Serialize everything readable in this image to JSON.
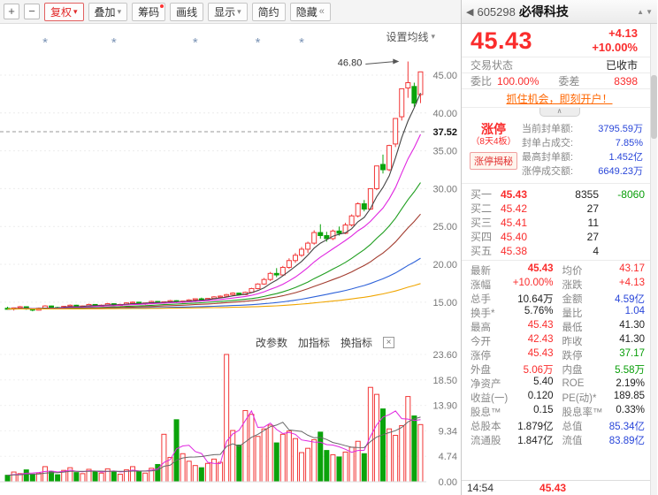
{
  "colors": {
    "red": "#fa2c2c",
    "green": "#089e08",
    "blue": "#2946d9",
    "orange_link": "#ff6600"
  },
  "icons": {
    "caret": "▾",
    "back": "◀",
    "hide_chevrons": "«",
    "close": "×",
    "collapse": "∧",
    "prev": "▲",
    "next": "▼"
  },
  "toolbar": {
    "zoom_in": "+",
    "zoom_out": "−",
    "buttons": [
      {
        "label": "复权",
        "caret": true,
        "accent": true
      },
      {
        "label": "叠加",
        "caret": true
      },
      {
        "label": "筹码",
        "badge": true
      },
      {
        "label": "画线"
      },
      {
        "label": "显示",
        "caret": true
      },
      {
        "label": "简约"
      },
      {
        "label": "隐藏",
        "suffix": "«"
      }
    ]
  },
  "chart": {
    "ma_settings_label": "设置均线",
    "indicator_controls": [
      "改参数",
      "加指标",
      "换指标"
    ]
  },
  "chart_data": {
    "type": "candlestick+volume",
    "title": "605298 必得科技 日K线",
    "colors": {
      "up": "#f23636",
      "down": "#0ba30b"
    },
    "price_axis": {
      "range": [
        13.0,
        48.5
      ],
      "ticks": [
        45,
        40,
        35,
        30,
        25,
        20,
        15
      ],
      "tick_labels": [
        "45.00",
        "40.00",
        "35.00",
        "30.00",
        "25.00",
        "20.00",
        "15.00"
      ],
      "special_tick": {
        "label": "37.52",
        "value": 37.52
      }
    },
    "volume_axis": {
      "max": 23.6,
      "tick_labels": [
        "23.60",
        "18.50",
        "13.90",
        "9.34",
        "4.74",
        "0.00"
      ]
    },
    "annotation": {
      "text": "46.80",
      "value": 46.8,
      "index": 64
    },
    "event_marker_indices": [
      6,
      17,
      30,
      40,
      47
    ],
    "ma": [
      {
        "period": 5,
        "color": "#444444"
      },
      {
        "period": 10,
        "color": "#e026e0"
      },
      {
        "period": 20,
        "color": "#1f9e1f"
      },
      {
        "period": 30,
        "color": "#a23b2e"
      },
      {
        "period": 60,
        "color": "#2e62d9"
      },
      {
        "period": 120,
        "color": "#f0a500"
      }
    ],
    "vol_ma": [
      {
        "period": 5,
        "color": "#e026e0"
      },
      {
        "period": 10,
        "color": "#666666"
      }
    ],
    "candles": [
      [
        14.2,
        14.4,
        14.0,
        14.1
      ],
      [
        14.1,
        14.3,
        13.9,
        14.25
      ],
      [
        14.25,
        14.5,
        14.1,
        14.4
      ],
      [
        14.4,
        14.45,
        14.0,
        14.1
      ],
      [
        14.1,
        14.2,
        13.8,
        13.95
      ],
      [
        13.95,
        14.3,
        13.9,
        14.2
      ],
      [
        14.2,
        14.6,
        14.15,
        14.5
      ],
      [
        14.5,
        14.55,
        14.2,
        14.3
      ],
      [
        14.3,
        14.4,
        14.1,
        14.2
      ],
      [
        14.2,
        14.5,
        14.15,
        14.45
      ],
      [
        14.45,
        14.7,
        14.3,
        14.6
      ],
      [
        14.6,
        14.65,
        14.3,
        14.4
      ],
      [
        14.4,
        14.55,
        14.25,
        14.5
      ],
      [
        14.5,
        14.8,
        14.4,
        14.7
      ],
      [
        14.7,
        14.75,
        14.45,
        14.55
      ],
      [
        14.55,
        14.7,
        14.4,
        14.6
      ],
      [
        14.6,
        14.9,
        14.5,
        14.8
      ],
      [
        14.8,
        14.85,
        14.55,
        14.65
      ],
      [
        14.65,
        14.8,
        14.5,
        14.7
      ],
      [
        14.7,
        15.0,
        14.6,
        14.9
      ],
      [
        14.9,
        15.1,
        14.75,
        15.0
      ],
      [
        15.0,
        15.05,
        14.7,
        14.8
      ],
      [
        14.8,
        14.95,
        14.65,
        14.9
      ],
      [
        14.9,
        15.2,
        14.8,
        15.1
      ],
      [
        15.1,
        15.15,
        14.85,
        14.95
      ],
      [
        14.95,
        15.1,
        14.8,
        15.05
      ],
      [
        15.05,
        15.3,
        14.95,
        15.2
      ],
      [
        15.2,
        15.25,
        14.9,
        15.0
      ],
      [
        15.0,
        15.2,
        14.9,
        15.15
      ],
      [
        15.15,
        15.4,
        15.05,
        15.3
      ],
      [
        15.3,
        15.5,
        15.2,
        15.45
      ],
      [
        15.45,
        15.6,
        15.25,
        15.35
      ],
      [
        15.35,
        15.55,
        15.2,
        15.5
      ],
      [
        15.5,
        15.8,
        15.4,
        15.7
      ],
      [
        15.7,
        15.9,
        15.55,
        15.8
      ],
      [
        15.8,
        16.1,
        15.7,
        16.0
      ],
      [
        16.0,
        16.3,
        15.9,
        16.2
      ],
      [
        16.2,
        16.25,
        15.9,
        16.0
      ],
      [
        16.0,
        16.4,
        15.95,
        16.3
      ],
      [
        16.3,
        16.9,
        16.2,
        16.8
      ],
      [
        16.8,
        17.5,
        16.7,
        17.4
      ],
      [
        17.4,
        18.2,
        17.3,
        18.0
      ],
      [
        18.0,
        19.0,
        17.8,
        18.8
      ],
      [
        18.8,
        19.5,
        18.3,
        18.6
      ],
      [
        18.6,
        19.8,
        18.5,
        19.6
      ],
      [
        19.6,
        20.8,
        19.4,
        20.5
      ],
      [
        20.5,
        21.5,
        20.2,
        21.2
      ],
      [
        21.2,
        22.3,
        21.0,
        22.0
      ],
      [
        22.0,
        23.0,
        21.5,
        22.8
      ],
      [
        22.8,
        24.5,
        22.6,
        24.2
      ],
      [
        24.2,
        25.3,
        23.4,
        23.8
      ],
      [
        23.8,
        24.3,
        23.0,
        23.4
      ],
      [
        23.4,
        24.6,
        23.2,
        24.4
      ],
      [
        24.4,
        25.0,
        23.8,
        24.1
      ],
      [
        24.1,
        25.5,
        24.0,
        25.2
      ],
      [
        25.2,
        26.6,
        25.0,
        26.4
      ],
      [
        26.4,
        28.2,
        26.2,
        28.0
      ],
      [
        28.0,
        28.5,
        27.0,
        27.3
      ],
      [
        27.3,
        30.0,
        27.2,
        30.0
      ],
      [
        30.0,
        33.0,
        29.8,
        33.0
      ],
      [
        33.2,
        34.5,
        32.0,
        32.5
      ],
      [
        32.5,
        35.8,
        32.3,
        35.7
      ],
      [
        35.9,
        39.3,
        35.5,
        39.27
      ],
      [
        39.5,
        43.2,
        39.0,
        43.2
      ],
      [
        43.3,
        46.8,
        42.0,
        44.0
      ],
      [
        43.5,
        44.0,
        40.8,
        41.3
      ],
      [
        42.43,
        45.43,
        41.3,
        45.43
      ]
    ],
    "volumes": [
      1.2,
      1.8,
      1.5,
      2.2,
      1.4,
      1.6,
      2.8,
      1.9,
      1.3,
      2.1,
      2.6,
      1.7,
      1.5,
      2.3,
      1.8,
      1.6,
      2.4,
      1.9,
      1.4,
      2.2,
      2.8,
      1.8,
      1.6,
      2.5,
      3.2,
      8.8,
      4.5,
      11.5,
      5.2,
      3.8,
      3.0,
      2.6,
      3.4,
      4.2,
      3.6,
      23.6,
      9.5,
      6.8,
      13.2,
      12.5,
      8.4,
      9.8,
      10.5,
      7.2,
      8.8,
      9.4,
      8.0,
      5.4,
      6.2,
      7.8,
      9.2,
      5.8,
      5.0,
      4.6,
      5.5,
      6.4,
      7.5,
      5.2,
      17.5,
      16.2,
      13.5,
      9.8,
      8.6,
      10.4,
      15.8,
      12.2,
      10.6
    ]
  },
  "quote": {
    "code": "605298",
    "name": "必得科技",
    "price": "45.43",
    "change": "+4.13",
    "change_pct": "+10.00%",
    "trade_status_label": "交易状态",
    "trade_status": "已收市",
    "weibi_label": "委比",
    "weibi": "100.00%",
    "weicha_label": "委差",
    "weicha": "8398",
    "promo": "抓住机会，即刻开户！",
    "limitup": {
      "badge_line1": "涨停",
      "badge_line2": "（8天4板）",
      "reveal": "涨停揭秘",
      "rows": [
        [
          "当前封单额:",
          "3795.59万"
        ],
        [
          "封单占成交:",
          "7.85%"
        ],
        [
          "最高封单额:",
          "1.452亿"
        ],
        [
          "涨停成交额:",
          "6649.23万"
        ]
      ]
    },
    "order_book": [
      [
        "买一",
        "45.43",
        "8355",
        "-8060"
      ],
      [
        "买二",
        "45.42",
        "27",
        ""
      ],
      [
        "买三",
        "45.41",
        "11",
        ""
      ],
      [
        "买四",
        "45.40",
        "27",
        ""
      ],
      [
        "买五",
        "45.38",
        "4",
        ""
      ]
    ],
    "stats": [
      [
        "最新",
        "45.43",
        "r",
        "均价",
        "43.17",
        "r"
      ],
      [
        "涨幅",
        "+10.00%",
        "r",
        "涨跌",
        "+4.13",
        "r"
      ],
      [
        "总手",
        "10.64万",
        "d",
        "金额",
        "4.59亿",
        "b"
      ],
      [
        "换手*",
        "5.76%",
        "d",
        "量比",
        "1.04",
        "b"
      ],
      [
        "最高",
        "45.43",
        "r",
        "最低",
        "41.30",
        "d"
      ],
      [
        "今开",
        "42.43",
        "r",
        "昨收",
        "41.30",
        "d"
      ],
      [
        "涨停",
        "45.43",
        "r",
        "跌停",
        "37.17",
        "g"
      ],
      [
        "外盘",
        "5.06万",
        "r",
        "内盘",
        "5.58万",
        "g"
      ],
      [
        "净资产",
        "5.40",
        "d",
        "ROE",
        "2.19%",
        "d"
      ],
      [
        "收益(一)",
        "0.120",
        "d",
        "PE(动)*",
        "189.85",
        "d"
      ],
      [
        "股息™",
        "0.15",
        "d",
        "股息率™",
        "0.33%",
        "d"
      ],
      [
        "总股本",
        "1.879亿",
        "d",
        "总值",
        "85.34亿",
        "b"
      ],
      [
        "流通股",
        "1.847亿",
        "d",
        "流值",
        "83.89亿",
        "b"
      ]
    ],
    "footer": {
      "time": "14:54",
      "price": "45.43"
    }
  }
}
